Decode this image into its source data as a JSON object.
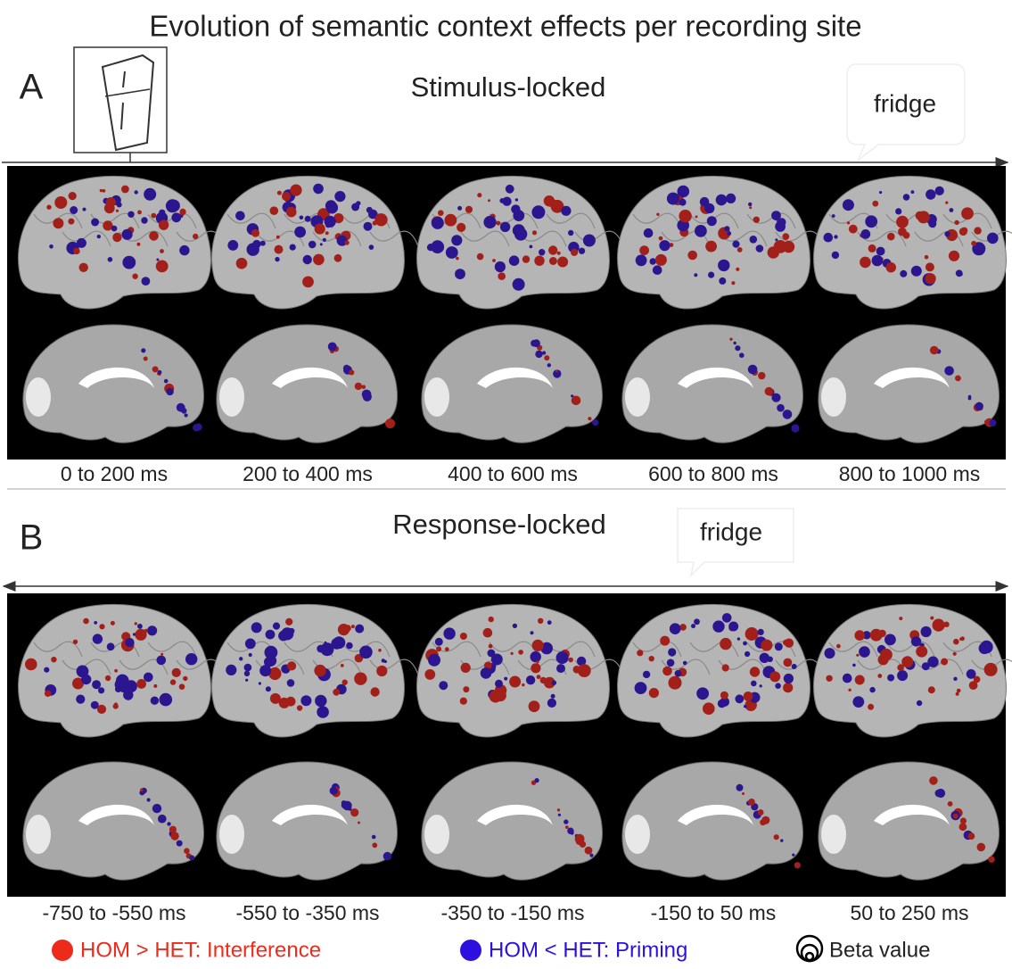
{
  "title": "Evolution of semantic context effects per recording site",
  "panels": [
    {
      "label": "A",
      "heading": "Stimulus-locked",
      "word": "fridge",
      "time_windows": [
        "0 to 200 ms",
        "200 to 400 ms",
        "400 to 600 ms",
        "600 to 800 ms",
        "800 to 1000 ms"
      ]
    },
    {
      "label": "B",
      "heading": "Response-locked",
      "word": "fridge",
      "time_windows": [
        "-750 to -550 ms",
        "-550 to -350 ms",
        "-350 to -150 ms",
        "-150 to 50 ms",
        "50 to 250 ms"
      ]
    }
  ],
  "legend": [
    {
      "label": "HOM > HET: Interference",
      "color": "#ee2a1b"
    },
    {
      "label": "HOM < HET: Priming",
      "color": "#2c10e0"
    },
    {
      "label": "Beta value"
    }
  ]
}
